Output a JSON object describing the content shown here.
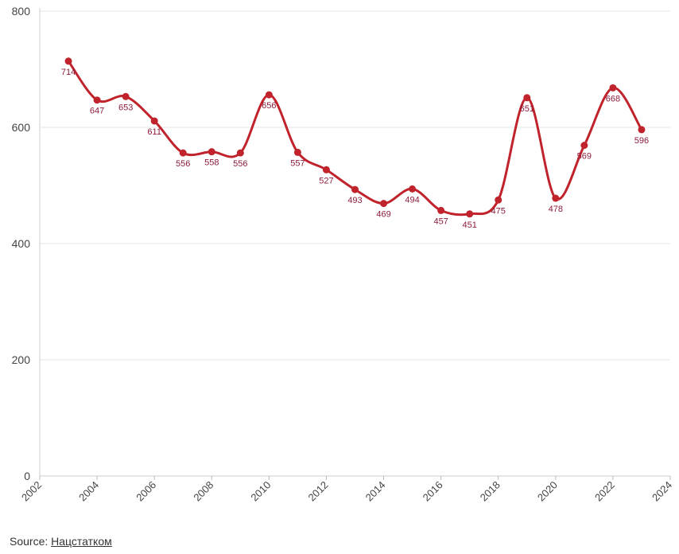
{
  "chart_data": {
    "type": "line",
    "title": "",
    "xlabel": "",
    "ylabel": "",
    "x": [
      2003,
      2004,
      2005,
      2006,
      2007,
      2008,
      2009,
      2010,
      2011,
      2012,
      2013,
      2014,
      2015,
      2016,
      2017,
      2018,
      2019,
      2020,
      2021,
      2022,
      2023
    ],
    "values": [
      714,
      647,
      653,
      611,
      556,
      558,
      556,
      656,
      557,
      527,
      493,
      469,
      494,
      457,
      451,
      475,
      651,
      478,
      569,
      668,
      596
    ],
    "xlim": [
      2002,
      2024
    ],
    "ylim": [
      0,
      800
    ],
    "x_ticks": [
      "2002",
      "2004",
      "2006",
      "2008",
      "2010",
      "2012",
      "2014",
      "2016",
      "2018",
      "2020",
      "2022",
      "2024"
    ],
    "y_ticks": [
      "0",
      "200",
      "400",
      "600",
      "800"
    ],
    "grid": "horizontal",
    "line_color": "#c0232b",
    "label_color": "#8c1c3a",
    "legend": "none"
  },
  "source": {
    "prefix": "Source:",
    "link_text": "Нацстатком"
  }
}
